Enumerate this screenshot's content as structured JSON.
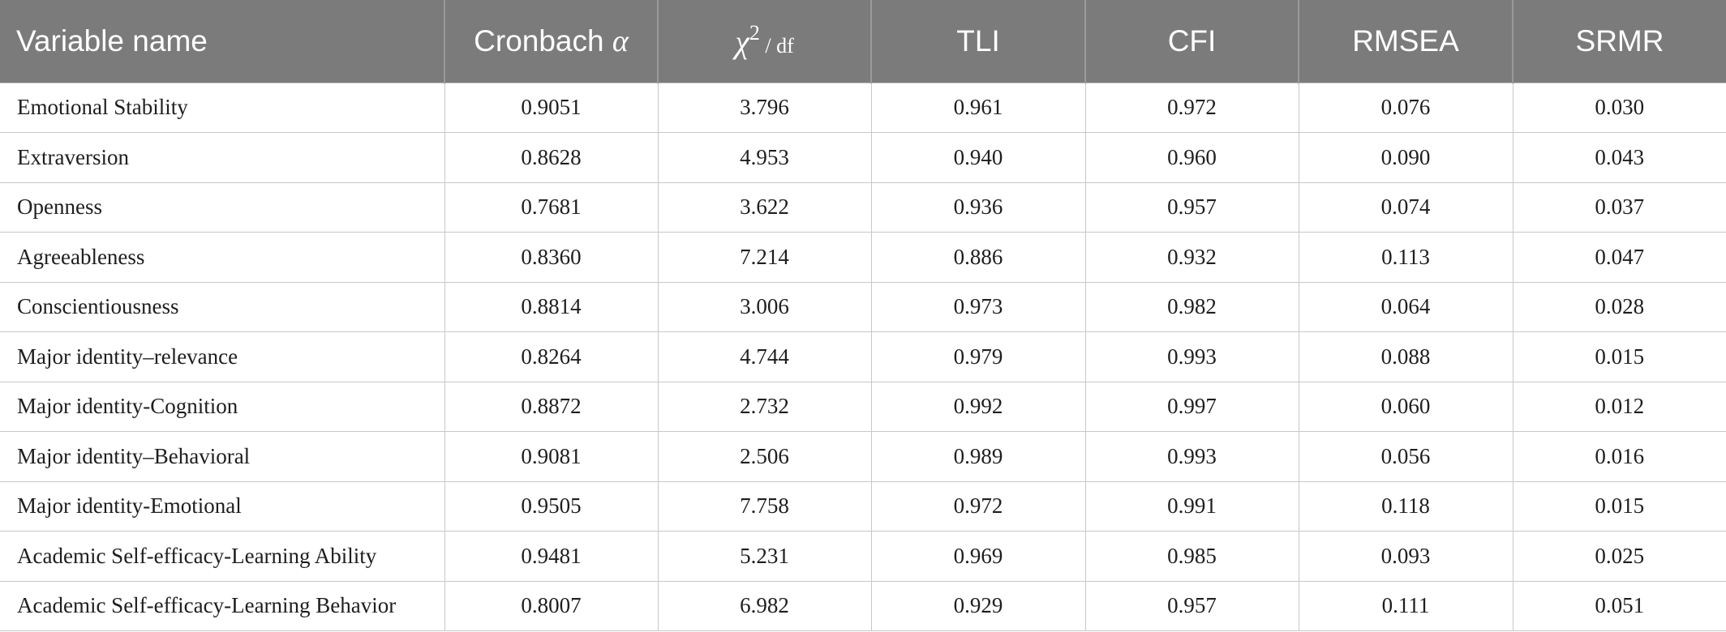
{
  "table": {
    "headers": {
      "variable": "Variable name",
      "cronbach_text": "Cronbach",
      "cronbach_symbol": "α",
      "chi_symbol": "χ",
      "chi_sup": "2",
      "chi_df": " / df",
      "tli": "TLI",
      "cfi": "CFI",
      "rmsea": "RMSEA",
      "srmr": "SRMR"
    },
    "rows": [
      {
        "name": "Emotional Stability",
        "alpha": "0.9051",
        "chi_df": "3.796",
        "tli": "0.961",
        "cfi": "0.972",
        "rmsea": "0.076",
        "srmr": "0.030"
      },
      {
        "name": "Extraversion",
        "alpha": "0.8628",
        "chi_df": "4.953",
        "tli": "0.940",
        "cfi": "0.960",
        "rmsea": "0.090",
        "srmr": "0.043"
      },
      {
        "name": "Openness",
        "alpha": "0.7681",
        "chi_df": "3.622",
        "tli": "0.936",
        "cfi": "0.957",
        "rmsea": "0.074",
        "srmr": "0.037"
      },
      {
        "name": "Agreeableness",
        "alpha": "0.8360",
        "chi_df": "7.214",
        "tli": "0.886",
        "cfi": "0.932",
        "rmsea": "0.113",
        "srmr": "0.047"
      },
      {
        "name": "Conscientiousness",
        "alpha": "0.8814",
        "chi_df": "3.006",
        "tli": "0.973",
        "cfi": "0.982",
        "rmsea": "0.064",
        "srmr": "0.028"
      },
      {
        "name": "Major identity–relevance",
        "alpha": "0.8264",
        "chi_df": "4.744",
        "tli": "0.979",
        "cfi": "0.993",
        "rmsea": "0.088",
        "srmr": "0.015"
      },
      {
        "name": "Major identity-Cognition",
        "alpha": "0.8872",
        "chi_df": "2.732",
        "tli": "0.992",
        "cfi": "0.997",
        "rmsea": "0.060",
        "srmr": "0.012"
      },
      {
        "name": "Major identity–Behavioral",
        "alpha": "0.9081",
        "chi_df": "2.506",
        "tli": "0.989",
        "cfi": "0.993",
        "rmsea": "0.056",
        "srmr": "0.016"
      },
      {
        "name": "Major identity-Emotional",
        "alpha": "0.9505",
        "chi_df": "7.758",
        "tli": "0.972",
        "cfi": "0.991",
        "rmsea": "0.118",
        "srmr": "0.015"
      },
      {
        "name": "Academic Self-efficacy-Learning Ability",
        "alpha": "0.9481",
        "chi_df": "5.231",
        "tli": "0.969",
        "cfi": "0.985",
        "rmsea": "0.093",
        "srmr": "0.025"
      },
      {
        "name": "Academic Self-efficacy-Learning Behavior",
        "alpha": "0.8007",
        "chi_df": "6.982",
        "tli": "0.929",
        "cfi": "0.957",
        "rmsea": "0.111",
        "srmr": "0.051"
      }
    ]
  }
}
